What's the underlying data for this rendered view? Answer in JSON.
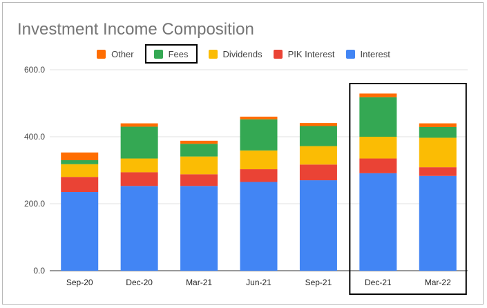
{
  "chart_data": {
    "type": "bar",
    "stacked": true,
    "title": "Investment Income Composition",
    "xlabel": "",
    "ylabel": "",
    "categories": [
      "Sep-20",
      "Dec-20",
      "Mar-21",
      "Jun-21",
      "Sep-21",
      "Dec-21",
      "Mar-22"
    ],
    "ylim": [
      0,
      600
    ],
    "yticks": [
      "0.0",
      "200.0",
      "400.0",
      "600.0"
    ],
    "ytick_values": [
      0,
      200,
      400,
      600
    ],
    "grid": true,
    "legend_position": "top",
    "legend_order": [
      "Other",
      "Fees",
      "Dividends",
      "PIK Interest",
      "Interest"
    ],
    "series": [
      {
        "name": "Interest",
        "color": "#4285F4",
        "values": [
          235,
          253,
          253,
          265,
          270,
          291,
          283
        ]
      },
      {
        "name": "PIK Interest",
        "color": "#EA4335",
        "values": [
          45,
          41,
          35,
          38,
          47,
          44,
          26
        ]
      },
      {
        "name": "Dividends",
        "color": "#FBBC04",
        "values": [
          38,
          41,
          53,
          56,
          55,
          65,
          88
        ]
      },
      {
        "name": "Fees",
        "color": "#34A853",
        "values": [
          12,
          95,
          38,
          93,
          60,
          118,
          32
        ]
      },
      {
        "name": "Other",
        "color": "#FF6D01",
        "values": [
          23,
          10,
          9,
          8,
          9,
          11,
          11
        ]
      }
    ],
    "annotations": [
      {
        "type": "box",
        "target": "legend",
        "item": "Fees"
      },
      {
        "type": "box",
        "target": "categories",
        "items": [
          "Dec-21",
          "Mar-22"
        ]
      }
    ]
  }
}
